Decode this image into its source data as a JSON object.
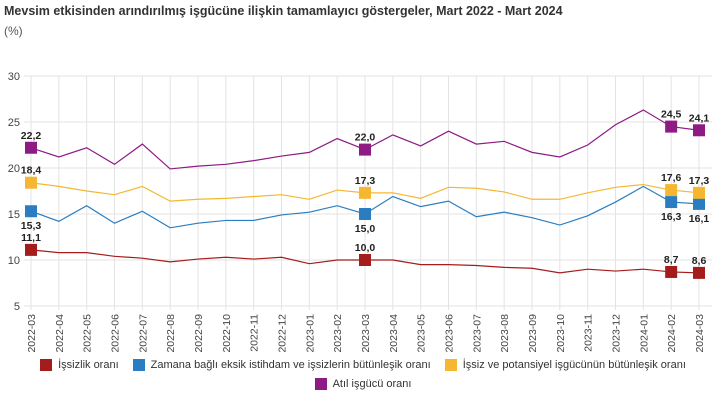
{
  "chart_data": {
    "type": "line",
    "title": "Mevsim etkisinden arındırılmış işgücüne ilişkin tamamlayıcı göstergeler, Mart 2022 - Mart 2024",
    "ylabel": "(%)",
    "ylim": [
      5,
      30
    ],
    "yticks": [
      5,
      10,
      15,
      20,
      25,
      30
    ],
    "grid": true,
    "legend_placement": "bottom",
    "categories": [
      "2022-03",
      "2022-04",
      "2022-05",
      "2022-06",
      "2022-07",
      "2022-08",
      "2022-09",
      "2022-10",
      "2022-11",
      "2022-12",
      "2023-01",
      "2023-02",
      "2023-03",
      "2023-04",
      "2023-05",
      "2023-06",
      "2023-07",
      "2023-08",
      "2023-09",
      "2023-10",
      "2023-11",
      "2023-12",
      "2024-01",
      "2024-02",
      "2024-03"
    ],
    "labeled_indices": [
      0,
      12,
      23,
      24
    ],
    "series": [
      {
        "name": "İşsizlik oranı",
        "color": "#a51c1c",
        "label_pos": "above",
        "values": [
          11.1,
          10.8,
          10.8,
          10.4,
          10.2,
          9.8,
          10.1,
          10.3,
          10.1,
          10.3,
          9.6,
          10.0,
          10.0,
          10.0,
          9.5,
          9.5,
          9.4,
          9.2,
          9.1,
          8.6,
          9.0,
          8.8,
          9.0,
          8.7,
          8.6
        ],
        "labels": [
          "11,1",
          "10,0",
          "8,7",
          "8,6"
        ]
      },
      {
        "name": "Zamana bağlı eksik istihdam ve işsizlerin bütünleşik oranı",
        "color": "#2a7dc1",
        "label_pos": "below",
        "values": [
          15.3,
          14.2,
          15.9,
          14.0,
          15.3,
          13.5,
          14.0,
          14.3,
          14.3,
          14.9,
          15.2,
          15.9,
          15.0,
          16.9,
          15.8,
          16.4,
          14.7,
          15.2,
          14.6,
          13.8,
          14.8,
          16.3,
          18.0,
          16.3,
          16.1
        ],
        "labels": [
          "15,3",
          "15,0",
          "16,3",
          "16,1"
        ]
      },
      {
        "name": "İşsiz ve potansiyel işgücünün bütünleşik oranı",
        "color": "#f5b731",
        "label_pos": "above",
        "values": [
          18.4,
          18.0,
          17.5,
          17.1,
          18.0,
          16.4,
          16.6,
          16.7,
          16.9,
          17.1,
          16.6,
          17.6,
          17.3,
          17.3,
          16.7,
          17.9,
          17.8,
          17.4,
          16.6,
          16.6,
          17.3,
          17.9,
          18.2,
          17.6,
          17.3
        ],
        "labels": [
          "18,4",
          "17,3",
          "17,6",
          "17,3"
        ]
      },
      {
        "name": "Atıl işgücü oranı",
        "color": "#8e1a84",
        "label_pos": "above",
        "values": [
          22.2,
          21.2,
          22.2,
          20.4,
          22.6,
          19.9,
          20.2,
          20.4,
          20.8,
          21.3,
          21.7,
          23.2,
          22.0,
          23.6,
          22.4,
          24.0,
          22.6,
          22.9,
          21.7,
          21.2,
          22.5,
          24.7,
          26.3,
          24.5,
          24.1
        ],
        "labels": [
          "22,2",
          "22,0",
          "24,5",
          "24,1"
        ]
      }
    ]
  }
}
